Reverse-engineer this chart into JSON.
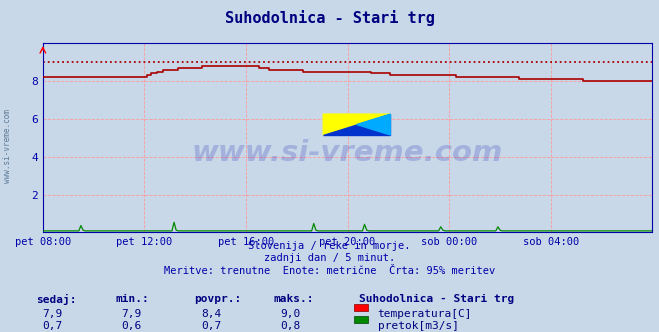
{
  "title": "Suhodolnica - Stari trg",
  "title_color": "#000080",
  "bg_color": "#c8d8e8",
  "plot_bg_color": "#c8d8e8",
  "grid_color": "#ff9999",
  "xlim": [
    0,
    288
  ],
  "ylim": [
    0,
    10
  ],
  "yticks": [
    2,
    4,
    6,
    8
  ],
  "xtick_labels": [
    "pet 08:00",
    "pet 12:00",
    "pet 16:00",
    "pet 20:00",
    "sob 00:00",
    "sob 04:00"
  ],
  "xtick_positions": [
    0,
    48,
    96,
    144,
    192,
    240
  ],
  "xlabel_color": "#0000aa",
  "ylabel_color": "#0000aa",
  "subtitle_lines": [
    "Slovenija / reke in morje.",
    "zadnji dan / 5 minut.",
    "Meritve: trenutne  Enote: metrične  Črta: 95% meritev"
  ],
  "subtitle_color": "#0000aa",
  "watermark": "www.si-vreme.com",
  "watermark_color": "#0000aa",
  "watermark_alpha": 0.18,
  "temp_color": "#aa0000",
  "flow_color": "#008800",
  "table_header": [
    "sedaj:",
    "min.:",
    "povpr.:",
    "maks.:"
  ],
  "table_row1": [
    "7,9",
    "7,9",
    "8,4",
    "9,0"
  ],
  "table_row2": [
    "0,7",
    "0,6",
    "0,7",
    "0,8"
  ],
  "legend_station": "Suhodolnica - Stari trg",
  "legend_temp": "temperatura[C]",
  "legend_flow": "pretok[m3/s]",
  "temp_max": 9.0,
  "sidebar_text": "www.si-vreme.com",
  "sidebar_color": "#4a6a8a",
  "axis_color": "#0000aa",
  "spine_color": "#0000aa"
}
